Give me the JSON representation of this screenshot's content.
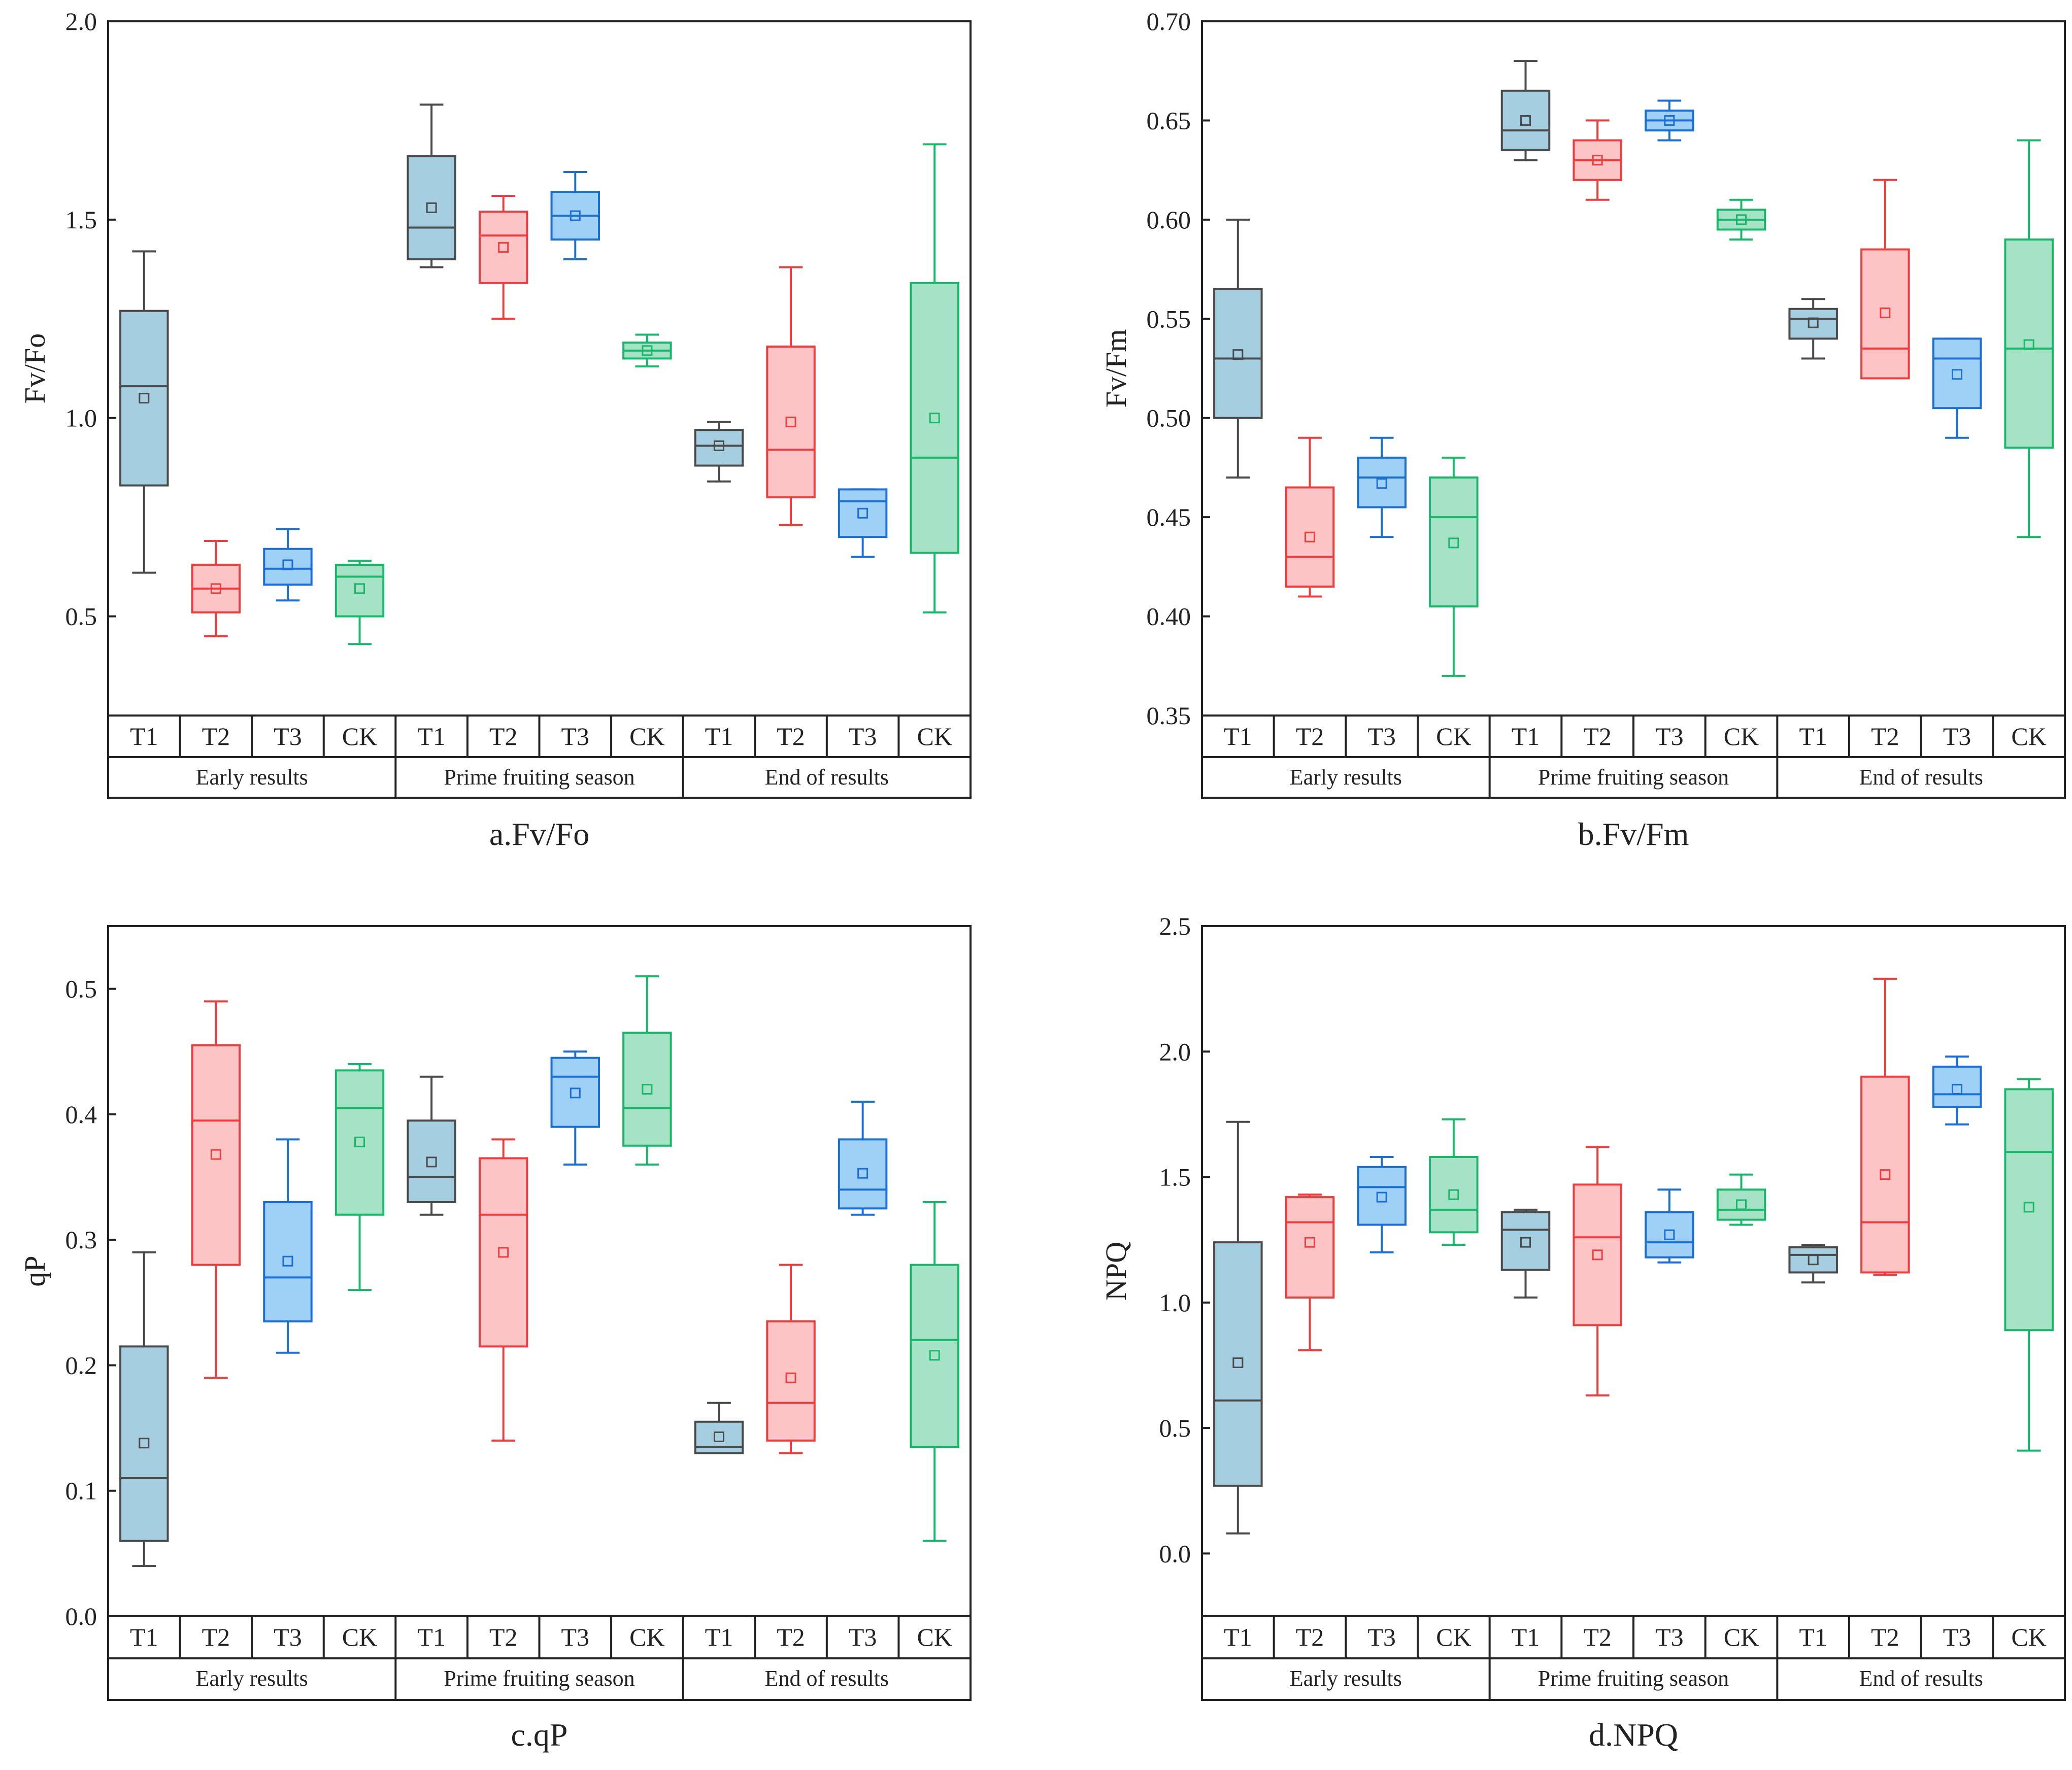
{
  "figure_labels": {
    "treatments": [
      "T1",
      "T2",
      "T3",
      "CK"
    ]
  },
  "colors": {
    "T1": {
      "fill": "#a5cfe0",
      "stroke": "#4a4a4a"
    },
    "T2": {
      "fill": "#fcc4c4",
      "stroke": "#f03c3c"
    },
    "T3": {
      "fill": "#9fd0f5",
      "stroke": "#1a6fd6"
    },
    "CK": {
      "fill": "#a6e3c6",
      "stroke": "#17b86a"
    }
  },
  "chart_data": [
    {
      "type": "box",
      "panel": "a",
      "caption": "a.Fv/Fo",
      "ylabel": "Fv/Fo",
      "ylim": [
        0.25,
        2.0
      ],
      "yticks": [
        "0.5",
        "1.0",
        "1.5",
        "2.0"
      ],
      "groups": [
        "Early results",
        "Prime fruiting season",
        "End of results"
      ],
      "categories": [
        "T1",
        "T2",
        "T3",
        "CK"
      ],
      "boxes": [
        [
          {
            "min": 0.61,
            "q1": 0.83,
            "median": 1.08,
            "q3": 1.27,
            "max": 1.42,
            "mean": 1.05
          },
          {
            "min": 0.45,
            "q1": 0.51,
            "median": 0.57,
            "q3": 0.63,
            "max": 0.69,
            "mean": 0.57
          },
          {
            "min": 0.54,
            "q1": 0.58,
            "median": 0.62,
            "q3": 0.67,
            "max": 0.72,
            "mean": 0.63
          },
          {
            "min": 0.43,
            "q1": 0.5,
            "median": 0.6,
            "q3": 0.63,
            "max": 0.64,
            "mean": 0.57
          }
        ],
        [
          {
            "min": 1.38,
            "q1": 1.4,
            "median": 1.48,
            "q3": 1.66,
            "max": 1.79,
            "mean": 1.53
          },
          {
            "min": 1.25,
            "q1": 1.34,
            "median": 1.46,
            "q3": 1.52,
            "max": 1.56,
            "mean": 1.43
          },
          {
            "min": 1.4,
            "q1": 1.45,
            "median": 1.51,
            "q3": 1.57,
            "max": 1.62,
            "mean": 1.51
          },
          {
            "min": 1.13,
            "q1": 1.15,
            "median": 1.17,
            "q3": 1.19,
            "max": 1.21,
            "mean": 1.17
          }
        ],
        [
          {
            "min": 0.84,
            "q1": 0.88,
            "median": 0.93,
            "q3": 0.97,
            "max": 0.99,
            "mean": 0.93
          },
          {
            "min": 0.73,
            "q1": 0.8,
            "median": 0.92,
            "q3": 1.18,
            "max": 1.38,
            "mean": 0.99
          },
          {
            "min": 0.65,
            "q1": 0.7,
            "median": 0.79,
            "q3": 0.82,
            "max": 0.82,
            "mean": 0.76
          },
          {
            "min": 0.51,
            "q1": 0.66,
            "median": 0.9,
            "q3": 1.34,
            "max": 1.69,
            "mean": 1.0
          }
        ]
      ]
    },
    {
      "type": "box",
      "panel": "b",
      "caption": "b.Fv/Fm",
      "ylabel": "Fv/Fm",
      "ylim": [
        0.35,
        0.7
      ],
      "yticks": [
        "0.35",
        "0.40",
        "0.45",
        "0.50",
        "0.55",
        "0.60",
        "0.65",
        "0.70"
      ],
      "groups": [
        "Early results",
        "Prime fruiting season",
        "End of results"
      ],
      "categories": [
        "T1",
        "T2",
        "T3",
        "CK"
      ],
      "boxes": [
        [
          {
            "min": 0.47,
            "q1": 0.5,
            "median": 0.53,
            "q3": 0.565,
            "max": 0.6,
            "mean": 0.532
          },
          {
            "min": 0.41,
            "q1": 0.415,
            "median": 0.43,
            "q3": 0.465,
            "max": 0.49,
            "mean": 0.44
          },
          {
            "min": 0.44,
            "q1": 0.455,
            "median": 0.47,
            "q3": 0.48,
            "max": 0.49,
            "mean": 0.467
          },
          {
            "min": 0.37,
            "q1": 0.405,
            "median": 0.45,
            "q3": 0.47,
            "max": 0.48,
            "mean": 0.437
          }
        ],
        [
          {
            "min": 0.63,
            "q1": 0.635,
            "median": 0.645,
            "q3": 0.665,
            "max": 0.68,
            "mean": 0.65
          },
          {
            "min": 0.61,
            "q1": 0.62,
            "median": 0.63,
            "q3": 0.64,
            "max": 0.65,
            "mean": 0.63
          },
          {
            "min": 0.64,
            "q1": 0.645,
            "median": 0.65,
            "q3": 0.655,
            "max": 0.66,
            "mean": 0.65
          },
          {
            "min": 0.59,
            "q1": 0.595,
            "median": 0.6,
            "q3": 0.605,
            "max": 0.61,
            "mean": 0.6
          }
        ],
        [
          {
            "min": 0.53,
            "q1": 0.54,
            "median": 0.55,
            "q3": 0.555,
            "max": 0.56,
            "mean": 0.548
          },
          {
            "min": 0.52,
            "q1": 0.52,
            "median": 0.535,
            "q3": 0.585,
            "max": 0.62,
            "mean": 0.553
          },
          {
            "min": 0.49,
            "q1": 0.505,
            "median": 0.53,
            "q3": 0.54,
            "max": 0.54,
            "mean": 0.522
          },
          {
            "min": 0.44,
            "q1": 0.485,
            "median": 0.535,
            "q3": 0.59,
            "max": 0.64,
            "mean": 0.537
          }
        ]
      ]
    },
    {
      "type": "box",
      "panel": "c",
      "caption": "c.qP",
      "ylabel": "qP",
      "ylim": [
        0.0,
        0.55
      ],
      "yticks": [
        "0.0",
        "0.1",
        "0.2",
        "0.3",
        "0.4",
        "0.5"
      ],
      "groups": [
        "Early results",
        "Prime fruiting season",
        "End of results"
      ],
      "categories": [
        "T1",
        "T2",
        "T3",
        "CK"
      ],
      "boxes": [
        [
          {
            "min": 0.04,
            "q1": 0.06,
            "median": 0.11,
            "q3": 0.215,
            "max": 0.29,
            "mean": 0.138
          },
          {
            "min": 0.19,
            "q1": 0.28,
            "median": 0.395,
            "q3": 0.455,
            "max": 0.49,
            "mean": 0.368
          },
          {
            "min": 0.21,
            "q1": 0.235,
            "median": 0.27,
            "q3": 0.33,
            "max": 0.38,
            "mean": 0.283
          },
          {
            "min": 0.26,
            "q1": 0.32,
            "median": 0.405,
            "q3": 0.435,
            "max": 0.44,
            "mean": 0.378
          }
        ],
        [
          {
            "min": 0.32,
            "q1": 0.33,
            "median": 0.35,
            "q3": 0.395,
            "max": 0.43,
            "mean": 0.362
          },
          {
            "min": 0.14,
            "q1": 0.215,
            "median": 0.32,
            "q3": 0.365,
            "max": 0.38,
            "mean": 0.29
          },
          {
            "min": 0.36,
            "q1": 0.39,
            "median": 0.43,
            "q3": 0.445,
            "max": 0.45,
            "mean": 0.417
          },
          {
            "min": 0.36,
            "q1": 0.375,
            "median": 0.405,
            "q3": 0.465,
            "max": 0.51,
            "mean": 0.42
          }
        ],
        [
          {
            "min": 0.13,
            "q1": 0.13,
            "median": 0.135,
            "q3": 0.155,
            "max": 0.17,
            "mean": 0.143
          },
          {
            "min": 0.13,
            "q1": 0.14,
            "median": 0.17,
            "q3": 0.235,
            "max": 0.28,
            "mean": 0.19
          },
          {
            "min": 0.32,
            "q1": 0.325,
            "median": 0.34,
            "q3": 0.38,
            "max": 0.41,
            "mean": 0.353
          },
          {
            "min": 0.06,
            "q1": 0.135,
            "median": 0.22,
            "q3": 0.28,
            "max": 0.33,
            "mean": 0.208
          }
        ]
      ]
    },
    {
      "type": "box",
      "panel": "d",
      "caption": "d.NPQ",
      "ylabel": "NPQ",
      "ylim": [
        -0.25,
        2.5
      ],
      "yticks": [
        "0.0",
        "0.5",
        "1.0",
        "1.5",
        "2.0",
        "2.5"
      ],
      "groups": [
        "Early results",
        "Prime fruiting season",
        "End of results"
      ],
      "categories": [
        "T1",
        "T2",
        "T3",
        "CK"
      ],
      "boxes": [
        [
          {
            "min": 0.08,
            "q1": 0.27,
            "median": 0.61,
            "q3": 1.24,
            "max": 1.72,
            "mean": 0.76
          },
          {
            "min": 0.81,
            "q1": 1.02,
            "median": 1.32,
            "q3": 1.42,
            "max": 1.43,
            "mean": 1.24
          },
          {
            "min": 1.2,
            "q1": 1.31,
            "median": 1.46,
            "q3": 1.54,
            "max": 1.58,
            "mean": 1.42
          },
          {
            "min": 1.23,
            "q1": 1.28,
            "median": 1.37,
            "q3": 1.58,
            "max": 1.73,
            "mean": 1.43
          }
        ],
        [
          {
            "min": 1.02,
            "q1": 1.13,
            "median": 1.29,
            "q3": 1.36,
            "max": 1.37,
            "mean": 1.24
          },
          {
            "min": 0.63,
            "q1": 0.91,
            "median": 1.26,
            "q3": 1.47,
            "max": 1.62,
            "mean": 1.19
          },
          {
            "min": 1.16,
            "q1": 1.18,
            "median": 1.24,
            "q3": 1.36,
            "max": 1.45,
            "mean": 1.27
          },
          {
            "min": 1.31,
            "q1": 1.33,
            "median": 1.37,
            "q3": 1.45,
            "max": 1.51,
            "mean": 1.39
          }
        ],
        [
          {
            "min": 1.08,
            "q1": 1.12,
            "median": 1.19,
            "q3": 1.22,
            "max": 1.23,
            "mean": 1.17
          },
          {
            "min": 1.11,
            "q1": 1.12,
            "median": 1.32,
            "q3": 1.9,
            "max": 2.29,
            "mean": 1.51
          },
          {
            "min": 1.71,
            "q1": 1.78,
            "median": 1.83,
            "q3": 1.94,
            "max": 1.98,
            "mean": 1.85
          },
          {
            "min": 0.41,
            "q1": 0.89,
            "median": 1.6,
            "q3": 1.85,
            "max": 1.89,
            "mean": 1.38
          }
        ]
      ]
    }
  ]
}
